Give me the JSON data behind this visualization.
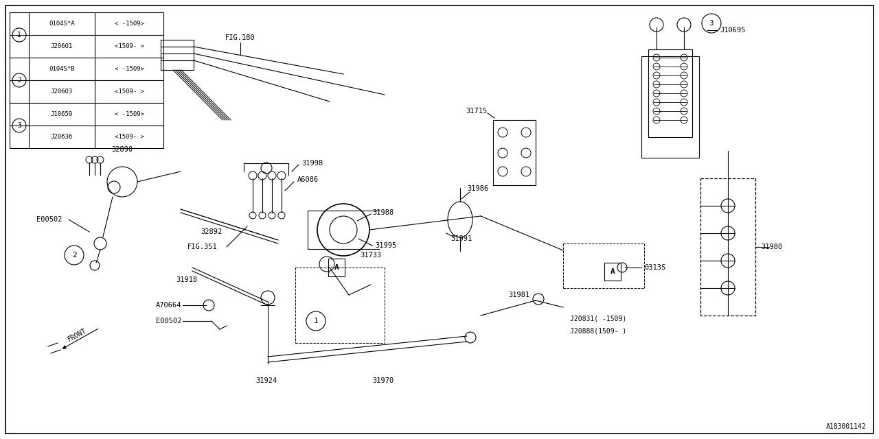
{
  "bg_color": "#ffffff",
  "line_color": "#000000",
  "fig_width": 12.8,
  "fig_height": 6.4,
  "dpi": 100,
  "table_rows": [
    {
      "num": 1,
      "col1": "0104S*A",
      "col2": "< -1509>"
    },
    {
      "num": 1,
      "col1": "J20601",
      "col2": "<1509- >"
    },
    {
      "num": 2,
      "col1": "0104S*B",
      "col2": "< -1509>"
    },
    {
      "num": 2,
      "col1": "J20603",
      "col2": "<1509- >"
    },
    {
      "num": 3,
      "col1": "J10659",
      "col2": "< -1509>"
    },
    {
      "num": 3,
      "col1": "J20636",
      "col2": "<1509- >"
    }
  ]
}
